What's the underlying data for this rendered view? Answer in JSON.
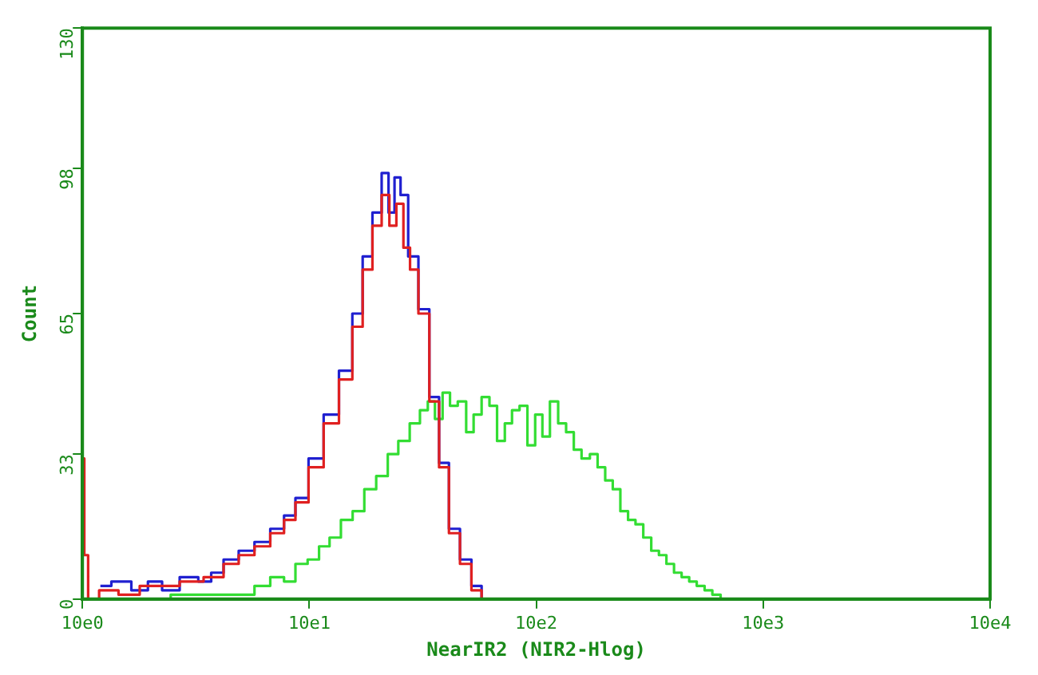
{
  "chart_data": {
    "type": "step",
    "xlabel": "NearIR2 (NIR2-Hlog)",
    "ylabel": "Count",
    "log": "x",
    "grid": false,
    "legend": false,
    "marker": "none",
    "line_style": "solid",
    "xlim": [
      10,
      100000
    ],
    "xticks": [
      {
        "value": 10,
        "label": "10e0"
      },
      {
        "value": 100,
        "label": "10e1"
      },
      {
        "value": 1000,
        "label": "10e2"
      },
      {
        "value": 10000,
        "label": "10e3"
      },
      {
        "value": 100000,
        "label": "10e4"
      }
    ],
    "ylim": [
      0,
      130
    ],
    "yticks": [
      0,
      33,
      65,
      98,
      130
    ],
    "series": [
      {
        "color": "#e02020",
        "x": [
          10,
          10.4,
          10.8,
          13,
          16,
          20,
          24,
          30,
          39,
          45,
          53,
          62,
          73,
          82,
          92,
          107,
          125,
          146,
          164,
          180,
          200,
          217,
          234,
          250,
          270,
          286,
          320,
          357,
          390,
          436,
          488,
          550,
          600
        ],
        "values": [
          32,
          10,
          0,
          2,
          1,
          3,
          3,
          4,
          5,
          8,
          10,
          12,
          15,
          18,
          22,
          30,
          40,
          50,
          62,
          75,
          85,
          92,
          85,
          90,
          80,
          75,
          65,
          45,
          30,
          15,
          8,
          2,
          0
        ]
      },
      {
        "color": "#2020d0",
        "x": [
          12,
          15,
          18,
          21,
          24,
          30,
          35,
          39,
          45,
          53,
          62,
          73,
          82,
          92,
          107,
          125,
          146,
          164,
          180,
          200,
          217,
          230,
          245,
          260,
          286,
          320,
          357,
          390,
          436,
          488,
          550,
          600
        ],
        "values": [
          3,
          4,
          2,
          4,
          2,
          5,
          4,
          6,
          9,
          11,
          13,
          16,
          19,
          23,
          32,
          42,
          52,
          65,
          78,
          88,
          97,
          88,
          96,
          92,
          78,
          66,
          46,
          31,
          16,
          9,
          3,
          0
        ]
      },
      {
        "color": "#33dd33",
        "x": [
          20,
          30,
          40,
          53,
          62,
          73,
          82,
          92,
          105,
          116,
          130,
          146,
          165,
          185,
          210,
          234,
          260,
          295,
          320,
          346,
          370,
          404,
          430,
          473,
          510,
          550,
          600,
          645,
          700,
          755,
          810,
          880,
          950,
          1030,
          1100,
          1200,
          1300,
          1410,
          1520,
          1650,
          1800,
          1930,
          2100,
          2250,
          2450,
          2630,
          2850,
          3080,
          3350,
          3600,
          3900,
          4200,
          4550,
          4900,
          5300,
          5750,
          6200,
          6800
        ],
        "values": [
          0,
          1,
          1,
          1,
          3,
          5,
          4,
          8,
          9,
          12,
          14,
          18,
          20,
          25,
          28,
          33,
          36,
          40,
          43,
          45,
          41,
          47,
          44,
          45,
          38,
          42,
          46,
          44,
          36,
          40,
          43,
          44,
          35,
          42,
          37,
          45,
          40,
          38,
          34,
          32,
          33,
          30,
          27,
          25,
          20,
          18,
          17,
          14,
          11,
          10,
          8,
          6,
          5,
          4,
          3,
          2,
          1,
          0
        ]
      }
    ]
  }
}
